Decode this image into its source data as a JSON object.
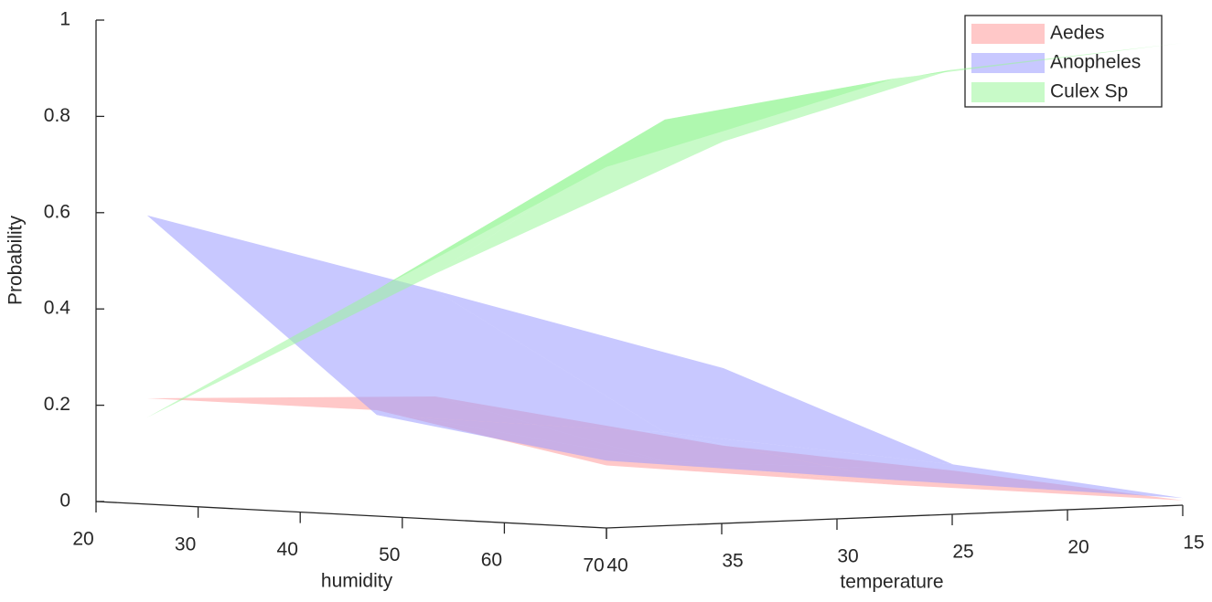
{
  "chart_data": {
    "type": "surface3d",
    "xlabel": "humidity",
    "ylabel": "temperature",
    "zlabel": "Probability",
    "x": [
      25,
      47.5,
      70
    ],
    "y": [
      40,
      27.5,
      15
    ],
    "xlim": [
      20,
      70
    ],
    "ylim": [
      40,
      15
    ],
    "zlim": [
      0,
      1
    ],
    "xticks": [
      20,
      30,
      40,
      50,
      60,
      70
    ],
    "yticks": [
      40,
      35,
      30,
      25,
      20,
      15
    ],
    "zticks": [
      0,
      0.2,
      0.4,
      0.6,
      0.8,
      1
    ],
    "legend": "upper right",
    "series": [
      {
        "name": "Aedes",
        "color": "#ff9a9a",
        "z": [
          [
            0.22,
            0.22,
            0.13
          ],
          [
            0.2,
            0.09,
            0.066
          ],
          [
            0.074,
            0.047,
            0.01
          ]
        ]
      },
      {
        "name": "Anopheles",
        "color": "#9a9aff",
        "z": [
          [
            0.6,
            0.21,
            0.14
          ],
          [
            0.42,
            0.15,
            0.076
          ],
          [
            0.235,
            0.06,
            0.015
          ]
        ]
      },
      {
        "name": "Culex Sp",
        "color": "#9af59a",
        "z": [
          [
            0.18,
            0.47,
            0.75
          ],
          [
            0.455,
            0.8,
            0.91
          ],
          [
            0.706,
            0.88,
            0.96
          ]
        ]
      }
    ]
  }
}
